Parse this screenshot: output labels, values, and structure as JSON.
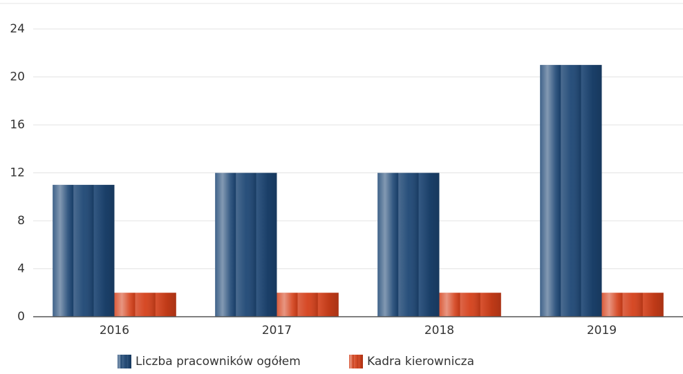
{
  "chart_data": {
    "type": "bar",
    "categories": [
      "2016",
      "2017",
      "2018",
      "2019"
    ],
    "series": [
      {
        "name": "Liczba pracowników ogółem",
        "color": "#1d4674",
        "values": [
          11,
          12,
          12,
          21
        ]
      },
      {
        "name": "Kadra kierownicza",
        "color": "#d4401a",
        "values": [
          2,
          2,
          2,
          2
        ]
      }
    ],
    "ylim": [
      0,
      24
    ],
    "yticks": [
      0,
      4,
      8,
      12,
      16,
      20,
      24
    ],
    "grid": true,
    "legend": "bottom"
  }
}
